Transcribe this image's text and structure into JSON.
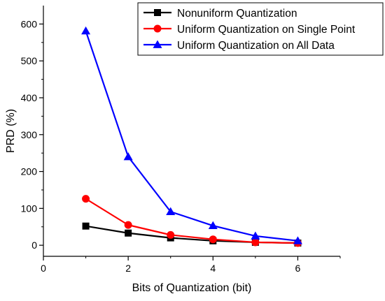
{
  "chart_data": {
    "type": "line",
    "title": "",
    "xlabel": "Bits of Quantization (bit)",
    "ylabel": "PRD (%)",
    "xlim": [
      0,
      7
    ],
    "ylim": [
      -30,
      650
    ],
    "xticks": [
      0,
      2,
      4,
      6
    ],
    "xtick_labels": [
      "0",
      "2",
      "4",
      "6"
    ],
    "yticks": [
      0,
      100,
      200,
      300,
      400,
      500,
      600
    ],
    "ytick_labels": [
      "0",
      "100",
      "200",
      "300",
      "400",
      "500",
      "600"
    ],
    "grid": false,
    "legend_position": "top-right",
    "x": [
      1,
      2,
      3,
      4,
      5,
      6
    ],
    "series": [
      {
        "name": "Nonuniform Quantization",
        "values": [
          52,
          33,
          20,
          12,
          8,
          6
        ],
        "color": "#000000",
        "marker": "square"
      },
      {
        "name": "Uniform Quantization on Single Point",
        "values": [
          126,
          55,
          28,
          16,
          8,
          6
        ],
        "color": "#ff0000",
        "marker": "circle"
      },
      {
        "name": "Uniform Quantization on All Data",
        "values": [
          581,
          240,
          91,
          53,
          25,
          12
        ],
        "color": "#0000ff",
        "marker": "triangle"
      }
    ]
  }
}
